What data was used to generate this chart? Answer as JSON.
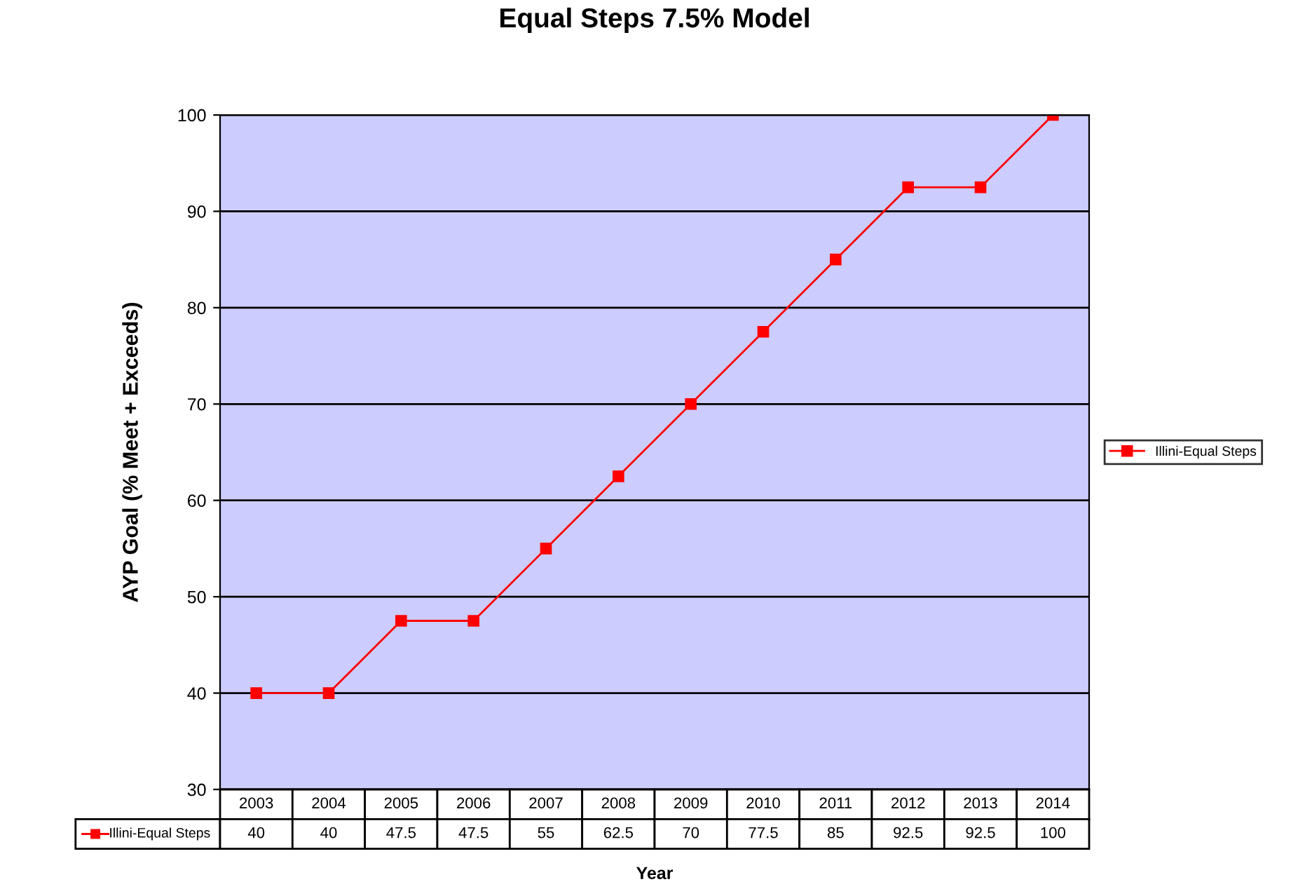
{
  "chart_data": {
    "type": "line",
    "title": "Equal Steps 7.5% Model",
    "xlabel": "Year",
    "ylabel": "AYP Goal (% Meet + Exceeds)",
    "categories": [
      "2003",
      "2004",
      "2005",
      "2006",
      "2007",
      "2008",
      "2009",
      "2010",
      "2011",
      "2012",
      "2013",
      "2014"
    ],
    "series": [
      {
        "name": "Illini-Equal Steps",
        "color": "#ff0000",
        "values": [
          40,
          40,
          47.5,
          47.5,
          55,
          62.5,
          70,
          77.5,
          85,
          92.5,
          92.5,
          100
        ]
      }
    ],
    "ylim": [
      30,
      100
    ],
    "yticks": [
      30,
      40,
      50,
      60,
      70,
      80,
      90,
      100
    ],
    "grid": "y",
    "legend": "right",
    "marker": "square",
    "line_style": "solid",
    "data_labels": true
  }
}
